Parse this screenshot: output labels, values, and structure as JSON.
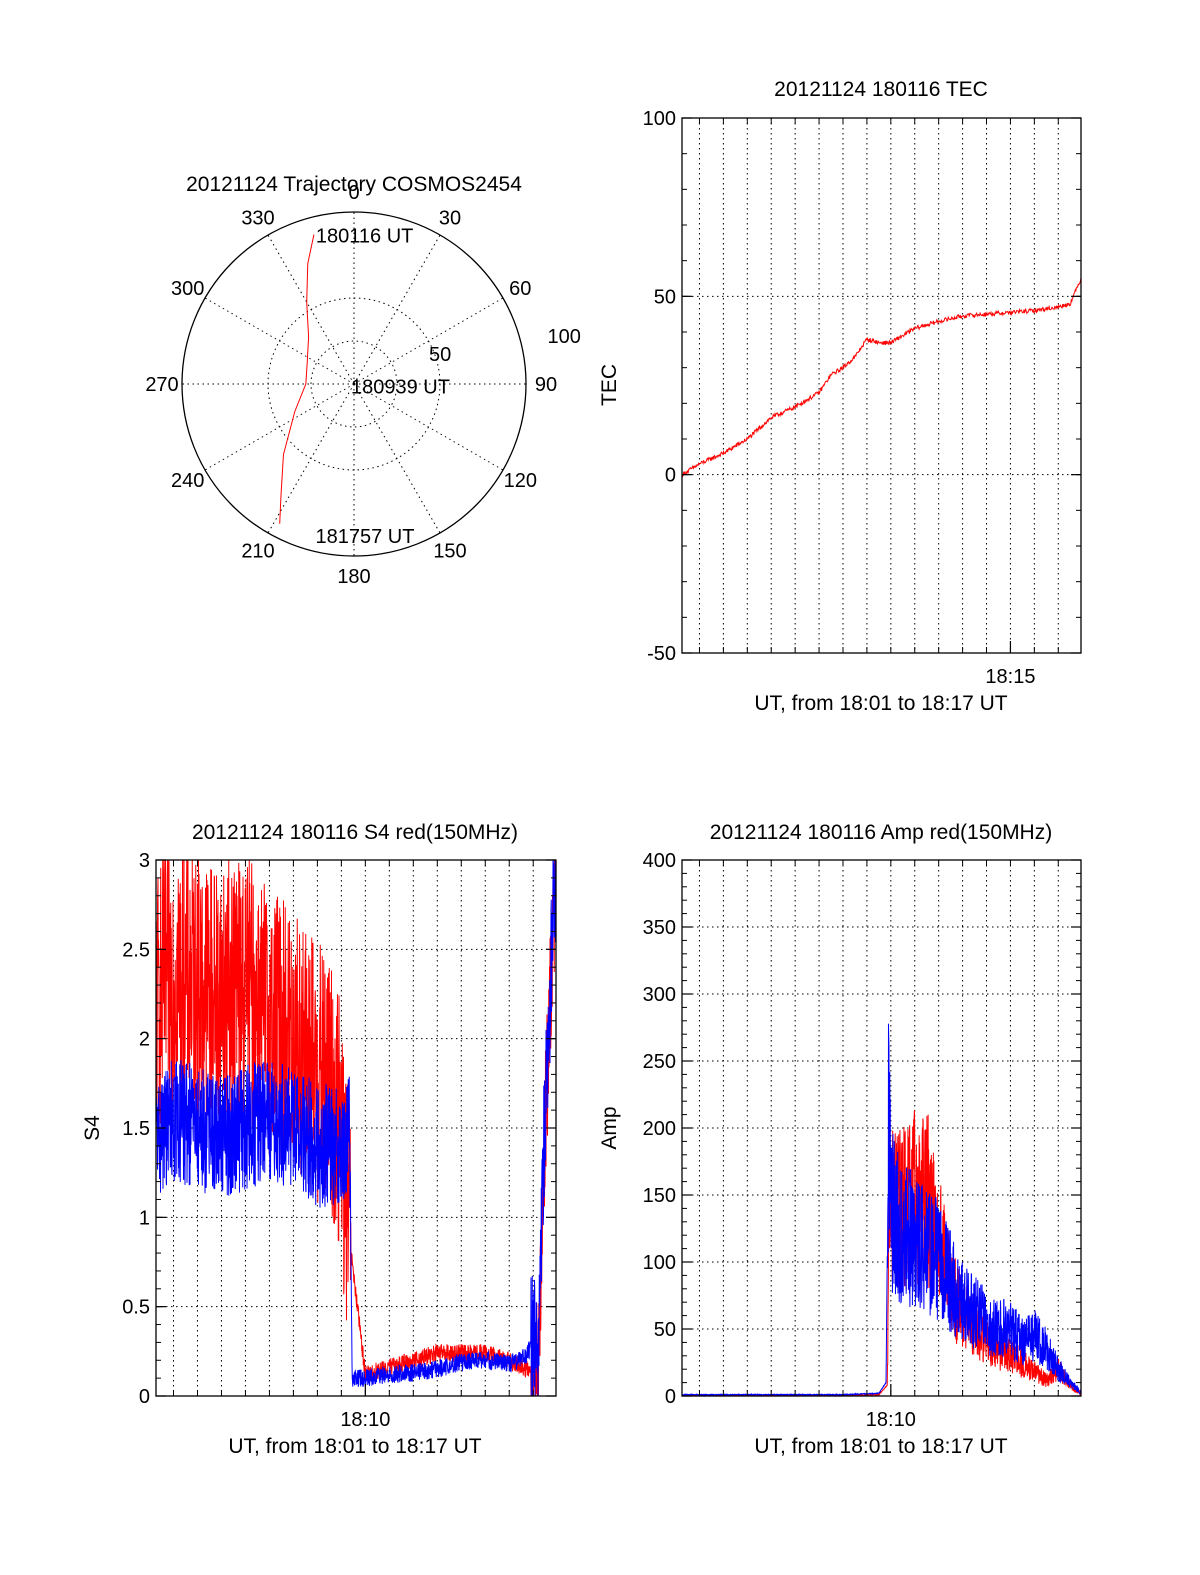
{
  "colors": {
    "red_channel": "#ff0000",
    "blue_channel": "#0000ff",
    "axes": "#000000"
  },
  "chart_data": [
    {
      "id": "polar",
      "type": "scatter",
      "subtype": "polar-trajectory",
      "title": "20121124 Trajectory COSMOS2454",
      "azimuth_labels": [
        "0",
        "30",
        "60",
        "90",
        "120",
        "150",
        "180",
        "210",
        "240",
        "270",
        "300",
        "330"
      ],
      "radial_labels": [
        "50",
        "100"
      ],
      "radial_range": [
        0,
        100
      ],
      "trajectory": {
        "azimuth_deg": [
          345,
          339,
          330,
          316,
          295,
          270,
          245,
          225,
          213,
          208
        ],
        "radius": [
          90,
          75,
          55,
          38,
          30,
          28,
          38,
          58,
          78,
          92
        ]
      },
      "annotations": [
        {
          "text": "180116 UT",
          "azimuth_deg": 345,
          "radius": 90
        },
        {
          "text": "180939 UT",
          "azimuth_deg": 255,
          "radius": 3
        },
        {
          "text": "181757 UT",
          "azimuth_deg": 195,
          "radius": 91
        }
      ]
    },
    {
      "id": "tec",
      "type": "line",
      "title": "20121124 180116 TEC",
      "xlabel": "UT, from 18:01 to 18:17 UT",
      "ylabel": "TEC",
      "xlim": [
        1.27,
        17.95
      ],
      "ylim": [
        -50,
        100
      ],
      "yticks": [
        -50,
        0,
        50,
        100
      ],
      "xticks": [
        {
          "value": 15,
          "label": "18:15"
        }
      ],
      "grid": true,
      "series": [
        {
          "color": "red",
          "x": [
            1.27,
            2.0,
            3.0,
            4.0,
            5.0,
            6.0,
            7.0,
            7.5,
            8.0,
            8.5,
            9.0,
            9.5,
            10.0,
            11.0,
            12.0,
            13.0,
            14.0,
            15.0,
            16.0,
            17.0,
            17.5,
            17.95
          ],
          "y": [
            0,
            3,
            6,
            10,
            16,
            19,
            23,
            28,
            30,
            33,
            38,
            37,
            37,
            41,
            43,
            44.5,
            45,
            45.5,
            46,
            47,
            48,
            55
          ]
        }
      ]
    },
    {
      "id": "s4",
      "type": "line",
      "title": "20121124 180116 S4 red(150MHz)",
      "xlabel": "UT, from 18:01 to 18:17 UT",
      "ylabel": "S4",
      "xlim": [
        1.27,
        17.95
      ],
      "ylim": [
        0,
        3
      ],
      "yticks": [
        "0",
        "0.5",
        "1",
        "1.5",
        "2",
        "2.5",
        "3"
      ],
      "xticks": [
        {
          "value": 10,
          "label": "18:10"
        }
      ],
      "grid": true,
      "series": [
        {
          "color": "red",
          "x": [
            1.27,
            2.0,
            3.0,
            4.0,
            5.0,
            6.0,
            7.0,
            8.0,
            8.6,
            9.0,
            9.4,
            10.0,
            11.0,
            12.0,
            13.0,
            14.0,
            15.0,
            16.0,
            16.7,
            17.2,
            17.5,
            17.95
          ],
          "y": [
            2.2,
            2.4,
            2.3,
            2.25,
            2.3,
            2.1,
            2.0,
            1.8,
            1.7,
            1.45,
            0.8,
            0.12,
            0.16,
            0.2,
            0.24,
            0.24,
            0.24,
            0.2,
            0.15,
            0.12,
            1.5,
            3.0
          ]
        },
        {
          "color": "blue",
          "x": [
            1.27,
            2.0,
            3.0,
            4.0,
            5.0,
            6.0,
            7.0,
            8.0,
            8.6,
            9.0,
            9.35,
            9.45,
            10.0,
            11.0,
            12.0,
            13.0,
            14.0,
            15.0,
            16.0,
            16.7,
            17.2,
            17.5,
            17.95
          ],
          "y": [
            1.45,
            1.55,
            1.5,
            1.45,
            1.5,
            1.55,
            1.5,
            1.4,
            1.4,
            1.4,
            1.45,
            0.1,
            0.1,
            0.12,
            0.13,
            0.15,
            0.19,
            0.2,
            0.18,
            0.22,
            0.35,
            1.6,
            3.0
          ]
        }
      ]
    },
    {
      "id": "amp",
      "type": "line",
      "title": "20121124 180116 Amp red(150MHz)",
      "xlabel": "UT, from 18:01 to 18:17 UT",
      "ylabel": "Amp",
      "xlim": [
        1.27,
        17.95
      ],
      "ylim": [
        0,
        400
      ],
      "yticks": [
        0,
        50,
        100,
        150,
        200,
        250,
        300,
        350,
        400
      ],
      "xticks": [
        {
          "value": 10,
          "label": "18:10"
        }
      ],
      "grid": true,
      "series": [
        {
          "color": "red",
          "x": [
            1.27,
            5.0,
            8.0,
            9.5,
            9.85,
            9.95,
            10.2,
            10.6,
            11.0,
            11.5,
            12.0,
            12.5,
            13.0,
            14.0,
            15.0,
            16.0,
            16.5,
            17.0,
            17.5,
            17.95
          ],
          "y": [
            0.5,
            0.5,
            0.5,
            1,
            8,
            140,
            145,
            140,
            150,
            150,
            120,
            80,
            60,
            40,
            30,
            18,
            12,
            20,
            8,
            2
          ]
        },
        {
          "color": "blue",
          "x": [
            1.27,
            5.0,
            8.0,
            9.5,
            9.8,
            9.9,
            10.0,
            10.5,
            11.0,
            11.5,
            12.0,
            12.5,
            13.0,
            14.0,
            15.0,
            15.5,
            16.0,
            16.5,
            17.0,
            17.5,
            17.95
          ],
          "y": [
            1,
            1,
            1,
            2,
            10,
            200,
            140,
            120,
            115,
            110,
            100,
            85,
            70,
            55,
            50,
            40,
            45,
            35,
            20,
            10,
            3
          ]
        }
      ]
    }
  ]
}
